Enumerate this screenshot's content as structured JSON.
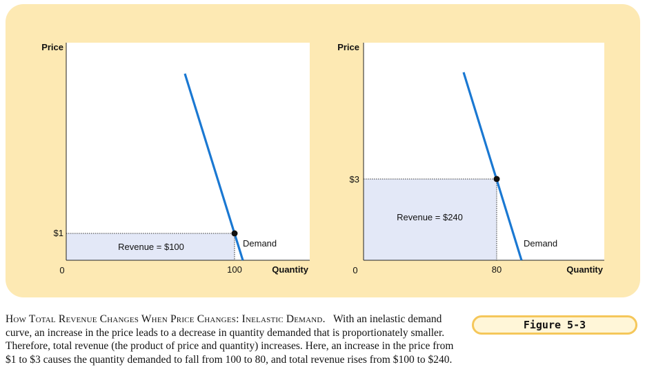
{
  "chart_data": [
    {
      "type": "line",
      "ylabel": "Price",
      "xlabel": "Quantity",
      "origin_label": "0",
      "price_tick": "$1",
      "quantity_tick": "100",
      "price": 1,
      "quantity": 100,
      "curve_label": "Demand",
      "area_label": "Revenue = $100"
    },
    {
      "type": "line",
      "ylabel": "Price",
      "xlabel": "Quantity",
      "origin_label": "0",
      "price_tick": "$3",
      "quantity_tick": "80",
      "price": 3,
      "quantity": 80,
      "curve_label": "Demand",
      "area_label": "Revenue = $240"
    }
  ],
  "caption": {
    "title": "How Total Revenue Changes When Price Changes: Inelastic Demand.",
    "body": "With an inelastic demand curve, an increase in the price leads to a decrease in quantity demanded that is proportionately smaller. Therefore, total revenue (the product of price and quantity) increases. Here, an increase in the price from $1 to $3 causes the quantity demanded to fall from 100 to 80, and total revenue rises from $100 to $240."
  },
  "figure_label": "Figure 5-3",
  "colors": {
    "panel": "#fde9b3",
    "demand": "#1a78d2",
    "revenue_fill": "#e3e8f7",
    "badge_border": "#f5c75a"
  }
}
